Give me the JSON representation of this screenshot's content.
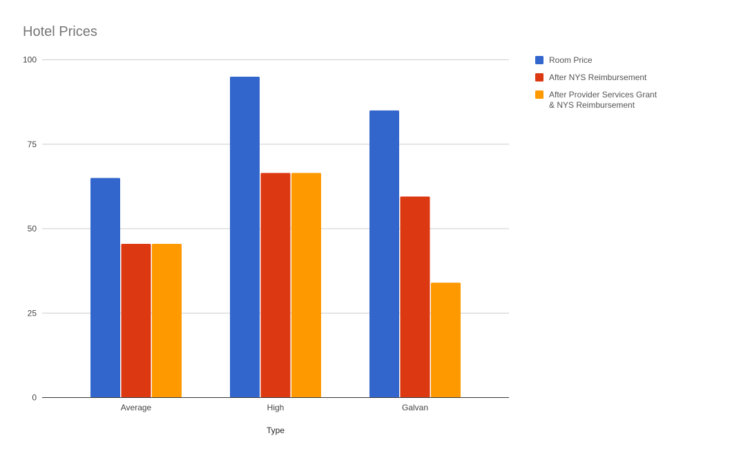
{
  "chart_data": {
    "type": "bar",
    "title": "Hotel Prices",
    "xlabel": "Type",
    "ylabel": "",
    "ylim": [
      0,
      100
    ],
    "yticks": [
      0,
      25,
      50,
      75,
      100
    ],
    "categories": [
      "Average",
      "High",
      "Galvan"
    ],
    "series": [
      {
        "name": "Room Price",
        "color": "#3366cc",
        "values": [
          65,
          95,
          85
        ]
      },
      {
        "name": "After NYS Reimbursement",
        "color": "#dc3912",
        "values": [
          45.5,
          66.5,
          59.5
        ]
      },
      {
        "name": "After Provider Services Grant & NYS Reimbursement",
        "color": "#ff9900",
        "values": [
          45.5,
          66.5,
          34
        ]
      }
    ],
    "grid": true,
    "legend_position": "right"
  }
}
